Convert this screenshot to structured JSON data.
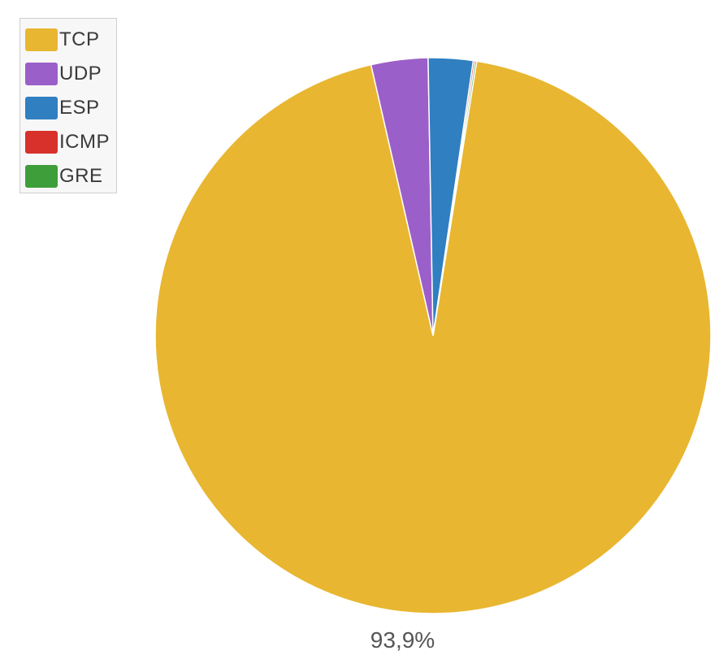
{
  "chart_data": {
    "type": "pie",
    "title": "",
    "legend_position": "top-left",
    "slices": [
      {
        "label": "TCP",
        "value": 93.9,
        "color": "#e8b630"
      },
      {
        "label": "UDP",
        "value": 3.3,
        "color": "#9b5fc9"
      },
      {
        "label": "ESP",
        "value": 2.6,
        "color": "#2f7fc1"
      },
      {
        "label": "ICMP",
        "value": 0.1,
        "color": "#d8302b"
      },
      {
        "label": "GRE",
        "value": 0.1,
        "color": "#3e9e3a"
      }
    ],
    "data_labels": [
      {
        "slice": "TCP",
        "text": "93,9%"
      }
    ]
  }
}
